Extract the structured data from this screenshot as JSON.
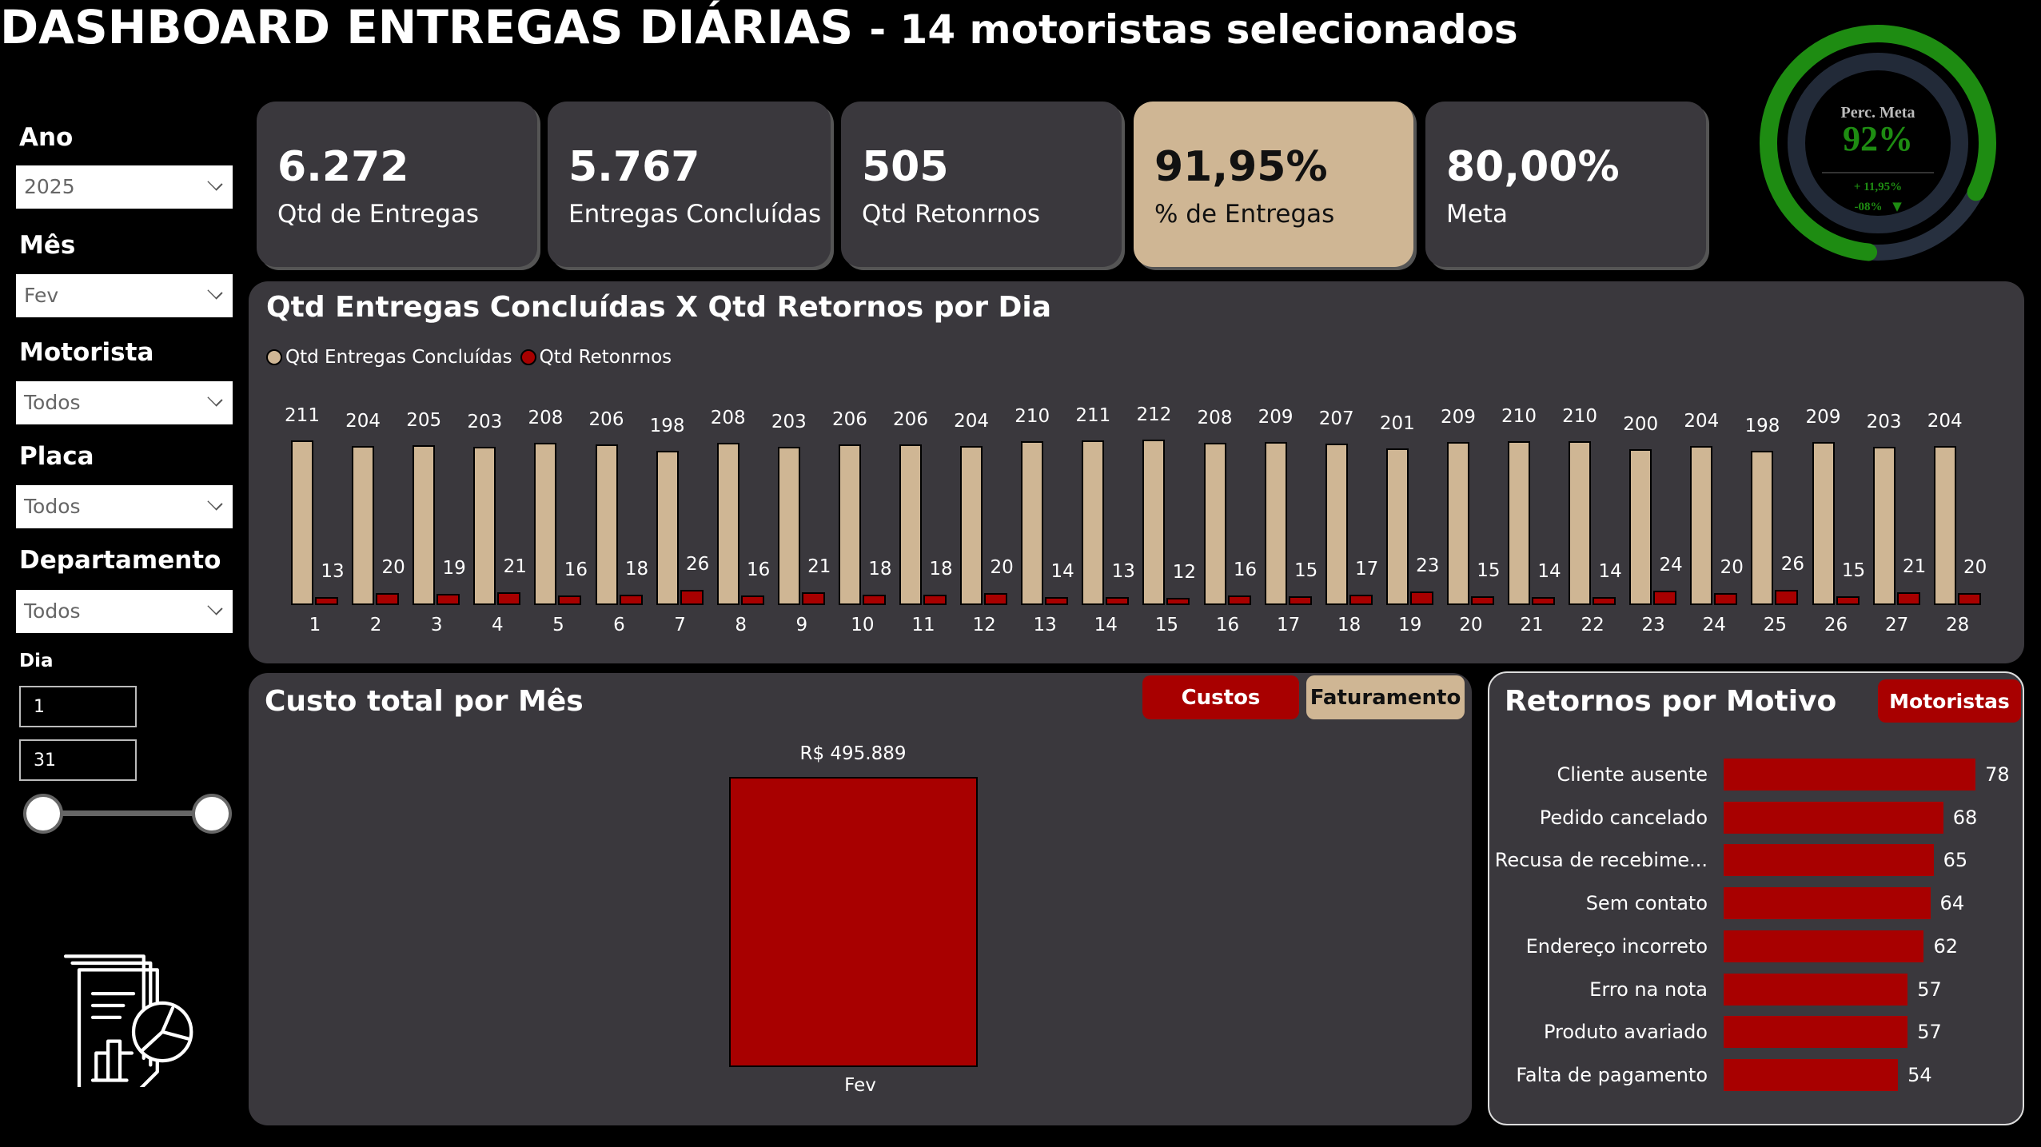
{
  "header": {
    "title": "DASHBOARD ENTREGAS DIÁRIAS",
    "subtitle": "- 14 motoristas selecionados"
  },
  "filters": {
    "ano": {
      "label": "Ano",
      "value": "2025"
    },
    "mes": {
      "label": "Mês",
      "value": "Fev"
    },
    "motorista": {
      "label": "Motorista",
      "value": "Todos"
    },
    "placa": {
      "label": "Placa",
      "value": "Todos"
    },
    "departamento": {
      "label": "Departamento",
      "value": "Todos"
    },
    "dia": {
      "label": "Dia",
      "from": "1",
      "to": "31"
    }
  },
  "kpis": [
    {
      "value": "6.272",
      "label": "Qtd de Entregas"
    },
    {
      "value": "5.767",
      "label": "Entregas Concluídas"
    },
    {
      "value": "505",
      "label": "Qtd Retonrnos"
    },
    {
      "value": "91,95%",
      "label": "% de Entregas"
    },
    {
      "value": "80,00%",
      "label": "Meta"
    }
  ],
  "gauge": {
    "label": "Perc. Meta",
    "value": "92%",
    "delta": "+ 11,95%",
    "change": "-08%",
    "arrow": "▼",
    "fraction": 0.92,
    "color": "#1e8c12"
  },
  "colors": {
    "tan": "#cfb694",
    "red": "#a80000",
    "panel": "#3a383d"
  },
  "chart_data": [
    {
      "type": "bar",
      "title": "Qtd Entregas Concluídas X Qtd Retornos por Dia",
      "categories": [
        "1",
        "2",
        "3",
        "4",
        "5",
        "6",
        "7",
        "8",
        "9",
        "10",
        "11",
        "12",
        "13",
        "14",
        "15",
        "16",
        "17",
        "18",
        "19",
        "20",
        "21",
        "22",
        "23",
        "24",
        "25",
        "26",
        "27",
        "28"
      ],
      "series": [
        {
          "name": "Qtd Entregas Concluídas",
          "values": [
            211,
            204,
            205,
            203,
            208,
            206,
            198,
            208,
            203,
            206,
            206,
            204,
            210,
            211,
            212,
            208,
            209,
            207,
            201,
            209,
            210,
            210,
            200,
            204,
            198,
            209,
            203,
            204
          ]
        },
        {
          "name": "Qtd Retonrnos",
          "values": [
            13,
            20,
            19,
            21,
            16,
            18,
            26,
            16,
            21,
            18,
            18,
            20,
            14,
            13,
            12,
            16,
            15,
            17,
            23,
            15,
            14,
            14,
            24,
            20,
            26,
            15,
            21,
            20
          ]
        }
      ],
      "legend": "top-left"
    },
    {
      "type": "bar",
      "title": "Custo total por Mês",
      "categories": [
        "Fev"
      ],
      "values": [
        495889
      ],
      "value_labels": [
        "R$ 495.889"
      ],
      "toggles": [
        "Custos",
        "Faturamento"
      ]
    },
    {
      "type": "bar",
      "orientation": "horizontal",
      "title": "Retornos por Motivo",
      "toggle": "Motoristas",
      "categories": [
        "Cliente ausente",
        "Pedido cancelado",
        "Recusa de recebime...",
        "Sem contato",
        "Endereço incorreto",
        "Erro na nota",
        "Produto avariado",
        "Falta de pagamento"
      ],
      "values": [
        78,
        68,
        65,
        64,
        62,
        57,
        57,
        54
      ]
    }
  ]
}
